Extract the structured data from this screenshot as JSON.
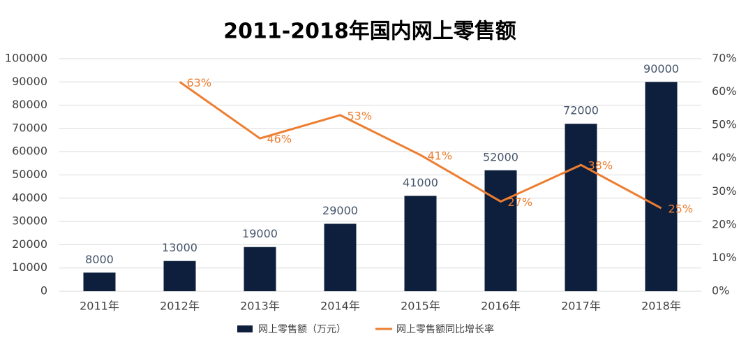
{
  "chart_data": {
    "type": "bar",
    "title": "2011-2018年国内网上零售额",
    "categories": [
      "2011年",
      "2012年",
      "2013年",
      "2014年",
      "2015年",
      "2016年",
      "2017年",
      "2018年"
    ],
    "series": [
      {
        "name": "网上零售额（万元）",
        "type": "bar",
        "color": "#0d1f3c",
        "values": [
          8000,
          13000,
          19000,
          29000,
          41000,
          52000,
          72000,
          90000
        ]
      },
      {
        "name": "网上零售额同比增长率",
        "type": "line",
        "axis": "y2",
        "color": "#ed7d31",
        "values": [
          null,
          63,
          46,
          53,
          41,
          27,
          38,
          25
        ],
        "value_labels": [
          null,
          "63%",
          "46%",
          "53%",
          "41%",
          "27%",
          "38%",
          "25%"
        ]
      }
    ],
    "ylim": [
      0,
      100000
    ],
    "yticks": [
      0,
      10000,
      20000,
      30000,
      40000,
      50000,
      60000,
      70000,
      80000,
      90000,
      100000
    ],
    "y2lim": [
      0,
      70
    ],
    "y2ticks": [
      {
        "value": 0,
        "label": "0%"
      },
      {
        "value": 10,
        "label": "10%"
      },
      {
        "value": 20,
        "label": "20%"
      },
      {
        "value": 30,
        "label": "30%"
      },
      {
        "value": 40,
        "label": "40%"
      },
      {
        "value": 50,
        "label": "50%"
      },
      {
        "value": 60,
        "label": "60%"
      },
      {
        "value": 70,
        "label": "70%"
      }
    ],
    "grid": true
  }
}
